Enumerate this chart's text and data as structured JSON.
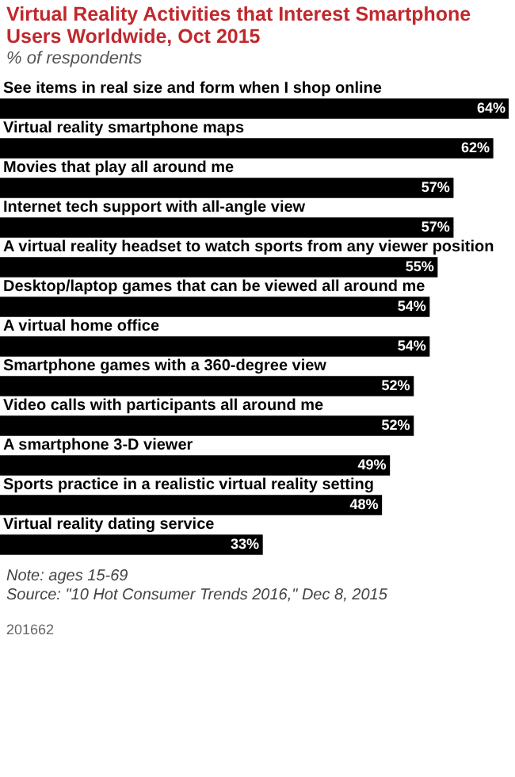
{
  "chart_data": {
    "type": "bar",
    "orientation": "horizontal",
    "title": "Virtual Reality Activities that Interest Smartphone Users Worldwide, Oct 2015",
    "subtitle": "% of respondents",
    "categories": [
      "See items in real size and form when I shop online",
      "Virtual reality smartphone maps",
      "Movies that play all around me",
      "Internet tech support with all-angle view",
      "A virtual reality headset to watch sports from any viewer position",
      "Desktop/laptop games that can be viewed all around me",
      "A virtual home office",
      "Smartphone games with a 360-degree view",
      "Video calls with participants all around me",
      "A smartphone 3-D viewer",
      "Sports practice in a realistic virtual reality setting",
      "Virtual reality dating service"
    ],
    "values": [
      64,
      62,
      57,
      57,
      55,
      54,
      54,
      52,
      52,
      49,
      48,
      33
    ],
    "value_labels": [
      "64%",
      "62%",
      "57%",
      "57%",
      "55%",
      "54%",
      "54%",
      "52%",
      "52%",
      "49%",
      "48%",
      "33%"
    ],
    "color": "#000000",
    "annotations": [
      "Note: ages 15-69",
      "Source: \"10 Hot Consumer Trends 2016,\" Dec 8, 2015",
      "201662"
    ]
  }
}
